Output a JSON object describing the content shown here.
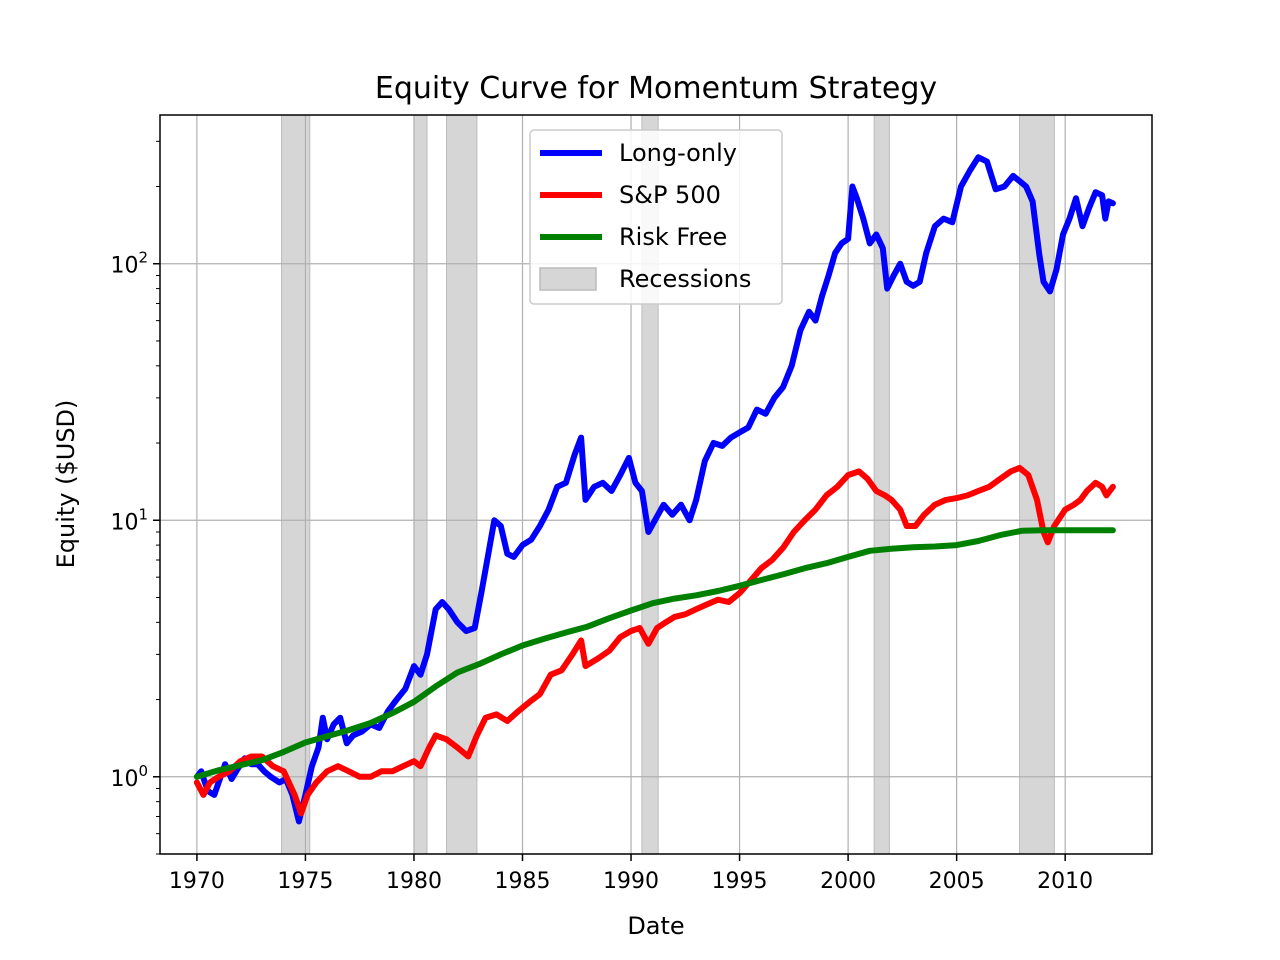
{
  "chart_data": {
    "type": "line",
    "title": "Equity Curve for Momentum Strategy",
    "xlabel": "Date",
    "ylabel": "Equity ($USD)",
    "xlim": [
      1968.3,
      2014.0
    ],
    "ylim": [
      0.5,
      380
    ],
    "yscale": "log",
    "grid": true,
    "legend_position": "top-center",
    "x_ticks": [
      1970,
      1975,
      1980,
      1985,
      1990,
      1995,
      2000,
      2005,
      2010
    ],
    "y_ticks": [
      {
        "value": 1,
        "base": "10",
        "exp": "0"
      },
      {
        "value": 10,
        "base": "10",
        "exp": "1"
      },
      {
        "value": 100,
        "base": "10",
        "exp": "2"
      }
    ],
    "recessions": [
      [
        1973.9,
        1975.2
      ],
      [
        1980.0,
        1980.6
      ],
      [
        1981.5,
        1982.9
      ],
      [
        1990.5,
        1991.25
      ],
      [
        2001.2,
        2001.9
      ],
      [
        2007.9,
        2009.5
      ]
    ],
    "legend": {
      "recessions_label": "Recessions",
      "recessions_color": "#d6d6d6"
    },
    "series": [
      {
        "name": "Long-only",
        "color": "#0000ff",
        "points": [
          [
            1970.0,
            1.0
          ],
          [
            1970.2,
            1.05
          ],
          [
            1970.5,
            0.88
          ],
          [
            1970.8,
            0.85
          ],
          [
            1971.0,
            0.95
          ],
          [
            1971.3,
            1.12
          ],
          [
            1971.6,
            0.98
          ],
          [
            1971.9,
            1.08
          ],
          [
            1972.2,
            1.18
          ],
          [
            1972.5,
            1.12
          ],
          [
            1972.8,
            1.12
          ],
          [
            1973.1,
            1.05
          ],
          [
            1973.4,
            1.0
          ],
          [
            1973.8,
            0.95
          ],
          [
            1974.1,
            0.98
          ],
          [
            1974.4,
            0.85
          ],
          [
            1974.7,
            0.67
          ],
          [
            1975.0,
            0.85
          ],
          [
            1975.3,
            1.1
          ],
          [
            1975.6,
            1.3
          ],
          [
            1975.8,
            1.7
          ],
          [
            1976.0,
            1.4
          ],
          [
            1976.3,
            1.6
          ],
          [
            1976.6,
            1.7
          ],
          [
            1976.9,
            1.35
          ],
          [
            1977.2,
            1.45
          ],
          [
            1977.6,
            1.5
          ],
          [
            1978.0,
            1.6
          ],
          [
            1978.4,
            1.55
          ],
          [
            1978.8,
            1.8
          ],
          [
            1979.2,
            2.0
          ],
          [
            1979.6,
            2.2
          ],
          [
            1980.0,
            2.7
          ],
          [
            1980.3,
            2.5
          ],
          [
            1980.6,
            3.0
          ],
          [
            1981.0,
            4.5
          ],
          [
            1981.3,
            4.8
          ],
          [
            1981.6,
            4.5
          ],
          [
            1982.0,
            4.0
          ],
          [
            1982.4,
            3.7
          ],
          [
            1982.8,
            3.8
          ],
          [
            1983.1,
            5.2
          ],
          [
            1983.4,
            7.2
          ],
          [
            1983.7,
            10.0
          ],
          [
            1984.0,
            9.5
          ],
          [
            1984.3,
            7.4
          ],
          [
            1984.6,
            7.2
          ],
          [
            1985.0,
            8.0
          ],
          [
            1985.4,
            8.4
          ],
          [
            1985.8,
            9.5
          ],
          [
            1986.2,
            11.0
          ],
          [
            1986.6,
            13.5
          ],
          [
            1987.0,
            14.0
          ],
          [
            1987.4,
            18.0
          ],
          [
            1987.7,
            21.0
          ],
          [
            1987.9,
            12.0
          ],
          [
            1988.3,
            13.5
          ],
          [
            1988.7,
            14.0
          ],
          [
            1989.1,
            13.0
          ],
          [
            1989.5,
            15.0
          ],
          [
            1989.9,
            17.5
          ],
          [
            1990.2,
            14.0
          ],
          [
            1990.5,
            13.0
          ],
          [
            1990.8,
            9.0
          ],
          [
            1991.1,
            10.0
          ],
          [
            1991.5,
            11.5
          ],
          [
            1991.9,
            10.5
          ],
          [
            1992.3,
            11.5
          ],
          [
            1992.7,
            10.0
          ],
          [
            1993.0,
            12.0
          ],
          [
            1993.4,
            17.0
          ],
          [
            1993.8,
            20.0
          ],
          [
            1994.2,
            19.5
          ],
          [
            1994.6,
            21.0
          ],
          [
            1995.0,
            22.0
          ],
          [
            1995.4,
            23.0
          ],
          [
            1995.8,
            27.0
          ],
          [
            1996.2,
            26.0
          ],
          [
            1996.6,
            30.0
          ],
          [
            1997.0,
            33.0
          ],
          [
            1997.4,
            40.0
          ],
          [
            1997.8,
            55.0
          ],
          [
            1998.2,
            65.0
          ],
          [
            1998.5,
            60.0
          ],
          [
            1998.8,
            75.0
          ],
          [
            1999.1,
            90.0
          ],
          [
            1999.4,
            110.0
          ],
          [
            1999.7,
            120.0
          ],
          [
            2000.0,
            125.0
          ],
          [
            2000.2,
            200.0
          ],
          [
            2000.4,
            180.0
          ],
          [
            2000.7,
            150.0
          ],
          [
            2001.0,
            120.0
          ],
          [
            2001.3,
            130.0
          ],
          [
            2001.6,
            115.0
          ],
          [
            2001.8,
            80.0
          ],
          [
            2002.1,
            90.0
          ],
          [
            2002.4,
            100.0
          ],
          [
            2002.7,
            85.0
          ],
          [
            2003.0,
            82.0
          ],
          [
            2003.3,
            85.0
          ],
          [
            2003.6,
            110.0
          ],
          [
            2004.0,
            140.0
          ],
          [
            2004.4,
            150.0
          ],
          [
            2004.8,
            145.0
          ],
          [
            2005.2,
            200.0
          ],
          [
            2005.6,
            230.0
          ],
          [
            2006.0,
            260.0
          ],
          [
            2006.4,
            250.0
          ],
          [
            2006.8,
            195.0
          ],
          [
            2007.2,
            200.0
          ],
          [
            2007.6,
            220.0
          ],
          [
            2007.9,
            210.0
          ],
          [
            2008.2,
            200.0
          ],
          [
            2008.5,
            175.0
          ],
          [
            2008.8,
            110.0
          ],
          [
            2009.0,
            85.0
          ],
          [
            2009.3,
            78.0
          ],
          [
            2009.6,
            95.0
          ],
          [
            2009.9,
            130.0
          ],
          [
            2010.2,
            150.0
          ],
          [
            2010.5,
            180.0
          ],
          [
            2010.8,
            140.0
          ],
          [
            2011.1,
            165.0
          ],
          [
            2011.4,
            190.0
          ],
          [
            2011.7,
            185.0
          ],
          [
            2011.85,
            150.0
          ],
          [
            2012.0,
            175.0
          ],
          [
            2012.2,
            172.0
          ]
        ]
      },
      {
        "name": "S&P 500",
        "color": "#ff0000",
        "points": [
          [
            1970.0,
            0.95
          ],
          [
            1970.3,
            0.85
          ],
          [
            1970.6,
            0.95
          ],
          [
            1971.0,
            1.0
          ],
          [
            1971.5,
            1.05
          ],
          [
            1972.0,
            1.15
          ],
          [
            1972.5,
            1.2
          ],
          [
            1973.0,
            1.2
          ],
          [
            1973.5,
            1.1
          ],
          [
            1974.0,
            1.05
          ],
          [
            1974.5,
            0.85
          ],
          [
            1974.8,
            0.72
          ],
          [
            1975.1,
            0.85
          ],
          [
            1975.5,
            0.95
          ],
          [
            1976.0,
            1.05
          ],
          [
            1976.5,
            1.1
          ],
          [
            1977.0,
            1.05
          ],
          [
            1977.5,
            1.0
          ],
          [
            1978.0,
            1.0
          ],
          [
            1978.5,
            1.05
          ],
          [
            1979.0,
            1.05
          ],
          [
            1979.5,
            1.1
          ],
          [
            1980.0,
            1.15
          ],
          [
            1980.3,
            1.1
          ],
          [
            1980.7,
            1.3
          ],
          [
            1981.0,
            1.45
          ],
          [
            1981.5,
            1.4
          ],
          [
            1982.0,
            1.3
          ],
          [
            1982.5,
            1.2
          ],
          [
            1982.9,
            1.45
          ],
          [
            1983.3,
            1.7
          ],
          [
            1983.8,
            1.75
          ],
          [
            1984.3,
            1.65
          ],
          [
            1984.8,
            1.8
          ],
          [
            1985.3,
            1.95
          ],
          [
            1985.8,
            2.1
          ],
          [
            1986.3,
            2.5
          ],
          [
            1986.8,
            2.6
          ],
          [
            1987.3,
            3.0
          ],
          [
            1987.7,
            3.4
          ],
          [
            1987.9,
            2.7
          ],
          [
            1988.5,
            2.9
          ],
          [
            1989.0,
            3.1
          ],
          [
            1989.5,
            3.5
          ],
          [
            1990.0,
            3.7
          ],
          [
            1990.4,
            3.8
          ],
          [
            1990.8,
            3.3
          ],
          [
            1991.2,
            3.8
          ],
          [
            1991.6,
            4.0
          ],
          [
            1992.0,
            4.2
          ],
          [
            1992.5,
            4.3
          ],
          [
            1993.0,
            4.5
          ],
          [
            1993.5,
            4.7
          ],
          [
            1994.0,
            4.9
          ],
          [
            1994.5,
            4.8
          ],
          [
            1995.0,
            5.2
          ],
          [
            1995.5,
            5.8
          ],
          [
            1996.0,
            6.5
          ],
          [
            1996.5,
            7.0
          ],
          [
            1997.0,
            7.8
          ],
          [
            1997.5,
            9.0
          ],
          [
            1998.0,
            10.0
          ],
          [
            1998.5,
            11.0
          ],
          [
            1999.0,
            12.5
          ],
          [
            1999.5,
            13.5
          ],
          [
            2000.0,
            15.0
          ],
          [
            2000.5,
            15.5
          ],
          [
            2000.9,
            14.5
          ],
          [
            2001.3,
            13.0
          ],
          [
            2001.7,
            12.5
          ],
          [
            2002.0,
            12.0
          ],
          [
            2002.4,
            11.0
          ],
          [
            2002.7,
            9.5
          ],
          [
            2003.1,
            9.5
          ],
          [
            2003.5,
            10.5
          ],
          [
            2004.0,
            11.5
          ],
          [
            2004.5,
            12.0
          ],
          [
            2005.0,
            12.2
          ],
          [
            2005.5,
            12.5
          ],
          [
            2006.0,
            13.0
          ],
          [
            2006.5,
            13.5
          ],
          [
            2007.0,
            14.5
          ],
          [
            2007.5,
            15.5
          ],
          [
            2007.9,
            16.0
          ],
          [
            2008.3,
            15.0
          ],
          [
            2008.7,
            12.0
          ],
          [
            2009.0,
            9.0
          ],
          [
            2009.2,
            8.2
          ],
          [
            2009.5,
            9.5
          ],
          [
            2010.0,
            11.0
          ],
          [
            2010.4,
            11.5
          ],
          [
            2010.7,
            12.0
          ],
          [
            2011.0,
            13.0
          ],
          [
            2011.4,
            14.0
          ],
          [
            2011.7,
            13.5
          ],
          [
            2011.9,
            12.5
          ],
          [
            2012.2,
            13.5
          ]
        ]
      },
      {
        "name": "Risk Free",
        "color": "#008000",
        "points": [
          [
            1970.0,
            1.0
          ],
          [
            1971.0,
            1.06
          ],
          [
            1972.0,
            1.11
          ],
          [
            1973.0,
            1.16
          ],
          [
            1974.0,
            1.25
          ],
          [
            1975.0,
            1.36
          ],
          [
            1976.0,
            1.44
          ],
          [
            1977.0,
            1.52
          ],
          [
            1978.0,
            1.62
          ],
          [
            1979.0,
            1.77
          ],
          [
            1980.0,
            1.96
          ],
          [
            1981.0,
            2.25
          ],
          [
            1982.0,
            2.55
          ],
          [
            1983.0,
            2.75
          ],
          [
            1984.0,
            3.0
          ],
          [
            1985.0,
            3.25
          ],
          [
            1986.0,
            3.45
          ],
          [
            1987.0,
            3.65
          ],
          [
            1988.0,
            3.85
          ],
          [
            1989.0,
            4.15
          ],
          [
            1990.0,
            4.45
          ],
          [
            1991.0,
            4.75
          ],
          [
            1992.0,
            4.95
          ],
          [
            1993.0,
            5.1
          ],
          [
            1994.0,
            5.3
          ],
          [
            1995.0,
            5.55
          ],
          [
            1996.0,
            5.85
          ],
          [
            1997.0,
            6.15
          ],
          [
            1998.0,
            6.5
          ],
          [
            1999.0,
            6.8
          ],
          [
            2000.0,
            7.2
          ],
          [
            2001.0,
            7.6
          ],
          [
            2002.0,
            7.75
          ],
          [
            2003.0,
            7.85
          ],
          [
            2004.0,
            7.9
          ],
          [
            2005.0,
            8.0
          ],
          [
            2006.0,
            8.3
          ],
          [
            2007.0,
            8.75
          ],
          [
            2008.0,
            9.1
          ],
          [
            2009.0,
            9.15
          ],
          [
            2010.0,
            9.15
          ],
          [
            2011.0,
            9.15
          ],
          [
            2012.2,
            9.15
          ]
        ]
      }
    ]
  }
}
